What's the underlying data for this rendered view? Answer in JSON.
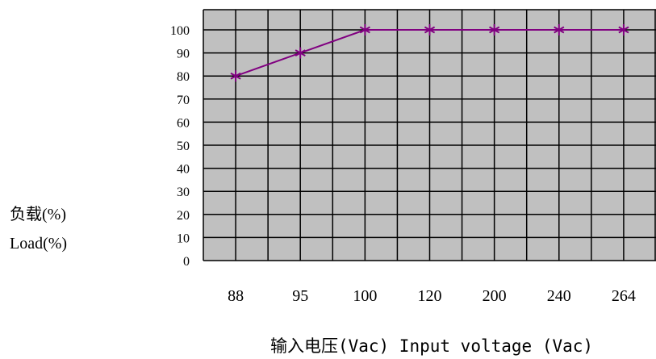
{
  "chart_data": {
    "type": "line",
    "categories": [
      "88",
      "95",
      "100",
      "120",
      "200",
      "240",
      "264"
    ],
    "series": [
      {
        "values": [
          80,
          90,
          100,
          100,
          100,
          100,
          100
        ]
      }
    ],
    "ylim": [
      0,
      100
    ],
    "yticks": [
      0,
      10,
      20,
      30,
      40,
      50,
      60,
      70,
      80,
      90,
      100
    ],
    "ylabel_lines": [
      "负载(%)",
      "Load(%)"
    ],
    "xlabel": "输入电压(Vac) Input voltage (Vac)",
    "grid": true,
    "legend": "none",
    "colors": {
      "plot_background": "#c0c0c0",
      "grid": "#000000",
      "line": "#800080"
    },
    "marker": "asterisk"
  }
}
